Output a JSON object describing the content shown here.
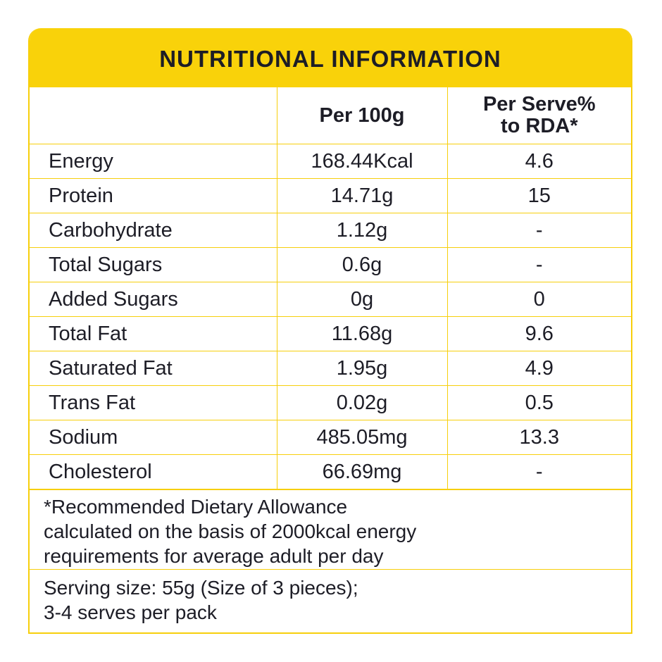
{
  "title": "NUTRITIONAL INFORMATION",
  "columns": [
    "",
    "Per 100g",
    "Per Serve%\nto RDA*"
  ],
  "column_lines": [
    "Per Serve%",
    "to RDA*"
  ],
  "rows": [
    {
      "name": "Energy",
      "per100": "168.44Kcal",
      "rda": "4.6"
    },
    {
      "name": "Protein",
      "per100": "14.71g",
      "rda": "15"
    },
    {
      "name": "Carbohydrate",
      "per100": "1.12g",
      "rda": "-"
    },
    {
      "name": "Total Sugars",
      "per100": "0.6g",
      "rda": "-"
    },
    {
      "name": "Added Sugars",
      "per100": "0g",
      "rda": "0"
    },
    {
      "name": "Total Fat",
      "per100": "11.68g",
      "rda": "9.6"
    },
    {
      "name": "Saturated Fat",
      "per100": "1.95g",
      "rda": "4.9"
    },
    {
      "name": "Trans Fat",
      "per100": "0.02g",
      "rda": "0.5"
    },
    {
      "name": "Sodium",
      "per100": "485.05mg",
      "rda": "13.3"
    },
    {
      "name": "Cholesterol",
      "per100": "66.69mg",
      "rda": "-"
    }
  ],
  "footnote": [
    "*Recommended Dietary Allowance",
    "calculated on the basis of 2000kcal energy",
    "requirements for average adult per day"
  ],
  "serving": [
    "Serving size: 55g (Size of 3 pieces);",
    "3-4 serves per pack"
  ],
  "colors": {
    "accent": "#f9d20a",
    "text": "#1d1d26"
  }
}
